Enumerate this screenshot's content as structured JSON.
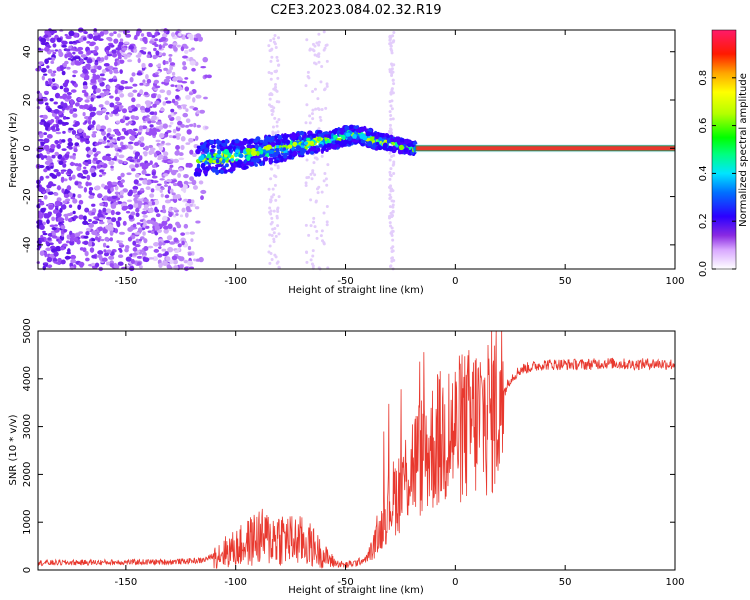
{
  "title": "C2E3.2023.084.02.32.R19",
  "colors": {
    "snr_line": "#e8382e",
    "carrier_fill": "#e8382e",
    "carrier_edge": "#2e8b57"
  },
  "chart_data": [
    {
      "type": "heatmap",
      "name": "spectrogram",
      "xlabel": "Height of straight line (km)",
      "ylabel": "Frequency (Hz)",
      "xlim": [
        -190,
        100
      ],
      "ylim": [
        -50,
        49
      ],
      "xticks": [
        -150,
        -100,
        -50,
        0,
        50,
        100
      ],
      "yticks": [
        -40,
        -20,
        0,
        20,
        40
      ],
      "colorbar": {
        "label": "Normalized spectral amplitude",
        "range": [
          0.0,
          1.0
        ],
        "ticks": [
          0.0,
          0.2,
          0.4,
          0.6,
          0.8
        ],
        "tick_labels": [
          "0.0",
          "0.2",
          "0.4",
          "0.6",
          "0.8"
        ]
      },
      "description_series": [
        {
          "name": "noise",
          "x_range": [
            -190,
            -118
          ],
          "freq_range": [
            -50,
            49
          ],
          "amplitude": 0.1
        },
        {
          "name": "signal_track",
          "x": [
            -118,
            -100,
            -80,
            -60,
            -45,
            -35,
            -25,
            -18
          ],
          "freq": [
            -4,
            -3,
            0,
            3,
            6,
            3,
            1,
            0
          ],
          "amplitude": 0.35
        },
        {
          "name": "carrier",
          "x_range": [
            -18,
            100
          ],
          "freq": 0,
          "amplitude": 0.9
        }
      ]
    },
    {
      "type": "line",
      "name": "snr",
      "xlabel": "Height of straight line (km)",
      "ylabel": "SNR (10 * v/v)",
      "xlim": [
        -190,
        100
      ],
      "ylim": [
        0,
        5000
      ],
      "xticks": [
        -150,
        -100,
        -50,
        0,
        50,
        100
      ],
      "yticks": [
        0,
        1000,
        2000,
        3000,
        4000,
        5000
      ],
      "x": [
        -190,
        -160,
        -130,
        -115,
        -110,
        -105,
        -100,
        -95,
        -90,
        -85,
        -80,
        -75,
        -70,
        -65,
        -60,
        -55,
        -50,
        -45,
        -40,
        -35,
        -30,
        -25,
        -20,
        -15,
        -10,
        -5,
        0,
        5,
        10,
        15,
        20,
        25,
        30,
        35,
        40,
        50,
        60,
        70,
        80,
        90,
        100
      ],
      "y": [
        150,
        160,
        170,
        200,
        300,
        380,
        450,
        550,
        700,
        650,
        700,
        620,
        600,
        500,
        300,
        150,
        100,
        150,
        250,
        700,
        1400,
        1700,
        2200,
        2400,
        2600,
        2800,
        2900,
        3000,
        3150,
        3250,
        3500,
        4000,
        4200,
        4250,
        4300,
        4300,
        4300,
        4330,
        4300,
        4320,
        4300
      ]
    }
  ]
}
